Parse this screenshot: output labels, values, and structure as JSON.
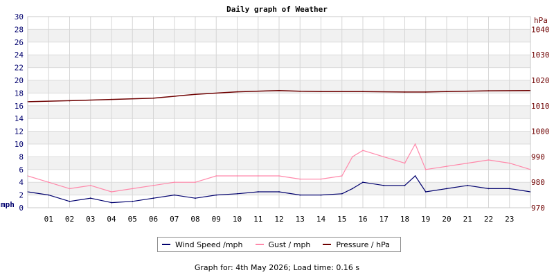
{
  "chart_data": {
    "type": "line",
    "title": "Daily graph of Weather",
    "left_axis": {
      "unit": "mph",
      "range": [
        0,
        30
      ],
      "ticks": [
        0,
        2,
        4,
        6,
        8,
        10,
        12,
        14,
        16,
        18,
        20,
        22,
        24,
        26,
        28,
        30
      ]
    },
    "right_axis": {
      "unit": "hPa",
      "range": [
        970,
        1045
      ],
      "ticks": [
        970,
        980,
        990,
        1000,
        1010,
        1020,
        1030,
        1040
      ]
    },
    "x_axis": {
      "range": [
        0,
        24
      ],
      "tick_labels": [
        "01",
        "02",
        "03",
        "04",
        "05",
        "06",
        "07",
        "08",
        "09",
        "10",
        "11",
        "12",
        "13",
        "14",
        "15",
        "16",
        "17",
        "18",
        "19",
        "20",
        "21",
        "22",
        "23"
      ]
    },
    "grid": true,
    "legend_placement": "bottom",
    "series": [
      {
        "name": "Wind Speed /mph",
        "axis": "left",
        "color": "#00006e",
        "x": [
          0,
          1,
          2,
          3,
          4,
          5,
          6,
          7,
          8,
          9,
          10,
          11,
          12,
          13,
          14,
          15,
          15.5,
          16,
          17,
          18,
          18.5,
          19,
          20,
          21,
          22,
          23,
          24
        ],
        "values": [
          2.5,
          2.0,
          1.0,
          1.5,
          0.8,
          1.0,
          1.5,
          2.0,
          1.5,
          2.0,
          2.2,
          2.5,
          2.5,
          2.0,
          2.0,
          2.2,
          3.0,
          4.0,
          3.5,
          3.5,
          5.0,
          2.5,
          3.0,
          3.5,
          3.0,
          3.0,
          2.5
        ]
      },
      {
        "name": "Gust / mph",
        "axis": "left",
        "color": "#ff88aa",
        "x": [
          0,
          1,
          2,
          3,
          4,
          5,
          6,
          7,
          8,
          9,
          10,
          11,
          12,
          13,
          14,
          15,
          15.5,
          16,
          17,
          18,
          18.5,
          19,
          20,
          21,
          22,
          23,
          24
        ],
        "values": [
          5,
          4,
          3,
          3.5,
          2.5,
          3,
          3.5,
          4,
          4,
          5,
          5,
          5,
          5,
          4.5,
          4.5,
          5,
          8,
          9,
          8,
          7,
          10,
          6,
          6.5,
          7,
          7.5,
          7,
          6
        ]
      },
      {
        "name": "Pressure / hPa",
        "axis": "right",
        "color": "#6e0000",
        "x": [
          0,
          2,
          4,
          6,
          8,
          10,
          12,
          13,
          14,
          16,
          18,
          19,
          20,
          22,
          24
        ],
        "values": [
          1011.6,
          1012.0,
          1012.5,
          1013.0,
          1014.5,
          1015.5,
          1016.0,
          1015.7,
          1015.6,
          1015.6,
          1015.4,
          1015.4,
          1015.6,
          1015.9,
          1016.0
        ]
      }
    ]
  },
  "footer": {
    "text": "Graph for: 4th May 2026; Load time: 0.16 s"
  }
}
